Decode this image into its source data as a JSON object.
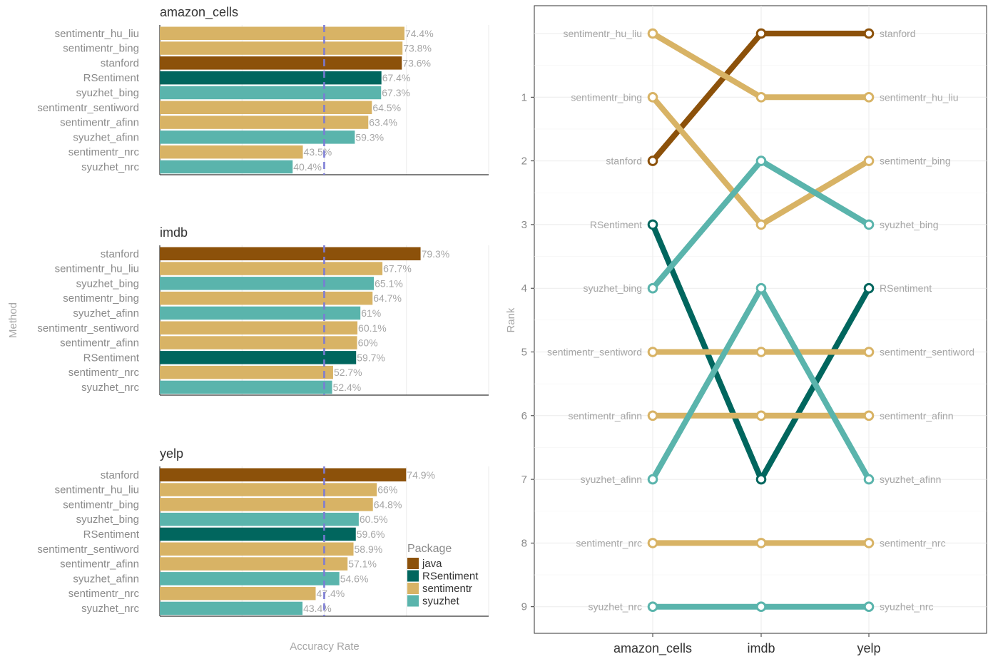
{
  "axis_titles": {
    "y_left": "Method",
    "x_left": "Accuracy Rate",
    "y_right": "Rank"
  },
  "legend": {
    "title": "Package",
    "items": [
      {
        "name": "java",
        "color": "#8c510a"
      },
      {
        "name": "RSentiment",
        "color": "#01665e"
      },
      {
        "name": "sentimentr",
        "color": "#d8b365"
      },
      {
        "name": "syuzhet",
        "color": "#5ab4ac"
      }
    ]
  },
  "colors": {
    "java": "#8c510a",
    "RSentiment": "#01665e",
    "sentimentr": "#d8b365",
    "syuzhet": "#5ab4ac",
    "reference_line": "#7b7bd6"
  },
  "chart_data": [
    {
      "type": "bar",
      "orientation": "horizontal",
      "title": "amazon_cells",
      "xlim": [
        0,
        1
      ],
      "reference_line": 0.5,
      "bars": [
        {
          "label": "sentimentr_hu_liu",
          "package": "sentimentr",
          "value": 0.744,
          "text": "74.4%"
        },
        {
          "label": "sentimentr_bing",
          "package": "sentimentr",
          "value": 0.738,
          "text": "73.8%"
        },
        {
          "label": "stanford",
          "package": "java",
          "value": 0.736,
          "text": "73.6%"
        },
        {
          "label": "RSentiment",
          "package": "RSentiment",
          "value": 0.674,
          "text": "67.4%"
        },
        {
          "label": "syuzhet_bing",
          "package": "syuzhet",
          "value": 0.673,
          "text": "67.3%"
        },
        {
          "label": "sentimentr_sentiword",
          "package": "sentimentr",
          "value": 0.645,
          "text": "64.5%"
        },
        {
          "label": "sentimentr_afinn",
          "package": "sentimentr",
          "value": 0.634,
          "text": "63.4%"
        },
        {
          "label": "syuzhet_afinn",
          "package": "syuzhet",
          "value": 0.593,
          "text": "59.3%"
        },
        {
          "label": "sentimentr_nrc",
          "package": "sentimentr",
          "value": 0.435,
          "text": "43.5%"
        },
        {
          "label": "syuzhet_nrc",
          "package": "syuzhet",
          "value": 0.404,
          "text": "40.4%"
        }
      ]
    },
    {
      "type": "bar",
      "orientation": "horizontal",
      "title": "imdb",
      "xlim": [
        0,
        1
      ],
      "reference_line": 0.5,
      "bars": [
        {
          "label": "stanford",
          "package": "java",
          "value": 0.793,
          "text": "79.3%"
        },
        {
          "label": "sentimentr_hu_liu",
          "package": "sentimentr",
          "value": 0.677,
          "text": "67.7%"
        },
        {
          "label": "syuzhet_bing",
          "package": "syuzhet",
          "value": 0.651,
          "text": "65.1%"
        },
        {
          "label": "sentimentr_bing",
          "package": "sentimentr",
          "value": 0.647,
          "text": "64.7%"
        },
        {
          "label": "syuzhet_afinn",
          "package": "syuzhet",
          "value": 0.61,
          "text": "61%"
        },
        {
          "label": "sentimentr_sentiword",
          "package": "sentimentr",
          "value": 0.601,
          "text": "60.1%"
        },
        {
          "label": "sentimentr_afinn",
          "package": "sentimentr",
          "value": 0.6,
          "text": "60%"
        },
        {
          "label": "RSentiment",
          "package": "RSentiment",
          "value": 0.597,
          "text": "59.7%"
        },
        {
          "label": "sentimentr_nrc",
          "package": "sentimentr",
          "value": 0.527,
          "text": "52.7%"
        },
        {
          "label": "syuzhet_nrc",
          "package": "syuzhet",
          "value": 0.524,
          "text": "52.4%"
        }
      ]
    },
    {
      "type": "bar",
      "orientation": "horizontal",
      "title": "yelp",
      "xlim": [
        0,
        1
      ],
      "reference_line": 0.5,
      "bars": [
        {
          "label": "stanford",
          "package": "java",
          "value": 0.749,
          "text": "74.9%"
        },
        {
          "label": "sentimentr_hu_liu",
          "package": "sentimentr",
          "value": 0.66,
          "text": "66%"
        },
        {
          "label": "sentimentr_bing",
          "package": "sentimentr",
          "value": 0.648,
          "text": "64.8%"
        },
        {
          "label": "syuzhet_bing",
          "package": "syuzhet",
          "value": 0.605,
          "text": "60.5%"
        },
        {
          "label": "RSentiment",
          "package": "RSentiment",
          "value": 0.596,
          "text": "59.6%"
        },
        {
          "label": "sentimentr_sentiword",
          "package": "sentimentr",
          "value": 0.589,
          "text": "58.9%"
        },
        {
          "label": "sentimentr_afinn",
          "package": "sentimentr",
          "value": 0.571,
          "text": "57.1%"
        },
        {
          "label": "syuzhet_afinn",
          "package": "syuzhet",
          "value": 0.546,
          "text": "54.6%"
        },
        {
          "label": "sentimentr_nrc",
          "package": "sentimentr",
          "value": 0.474,
          "text": "47.4%"
        },
        {
          "label": "syuzhet_nrc",
          "package": "syuzhet",
          "value": 0.434,
          "text": "43.4%"
        }
      ]
    },
    {
      "type": "line",
      "subtype": "bump",
      "x": [
        "amazon_cells",
        "imdb",
        "yelp"
      ],
      "ylabel": "Rank",
      "ylim": [
        0,
        9
      ],
      "y_reversed": true,
      "y_ticks": [
        1,
        2,
        3,
        4,
        5,
        6,
        7,
        8,
        9
      ],
      "series": [
        {
          "name": "stanford",
          "package": "java",
          "values": [
            2,
            0,
            0
          ]
        },
        {
          "name": "sentimentr_hu_liu",
          "package": "sentimentr",
          "values": [
            0,
            1,
            1
          ]
        },
        {
          "name": "sentimentr_bing",
          "package": "sentimentr",
          "values": [
            1,
            3,
            2
          ]
        },
        {
          "name": "RSentiment",
          "package": "RSentiment",
          "values": [
            3,
            7,
            4
          ]
        },
        {
          "name": "syuzhet_bing",
          "package": "syuzhet",
          "values": [
            4,
            2,
            3
          ]
        },
        {
          "name": "sentimentr_sentiword",
          "package": "sentimentr",
          "values": [
            5,
            5,
            5
          ]
        },
        {
          "name": "sentimentr_afinn",
          "package": "sentimentr",
          "values": [
            6,
            6,
            6
          ]
        },
        {
          "name": "syuzhet_afinn",
          "package": "syuzhet",
          "values": [
            7,
            4,
            7
          ]
        },
        {
          "name": "sentimentr_nrc",
          "package": "sentimentr",
          "values": [
            8,
            8,
            8
          ]
        },
        {
          "name": "syuzhet_nrc",
          "package": "syuzhet",
          "values": [
            9,
            9,
            9
          ]
        }
      ]
    }
  ]
}
